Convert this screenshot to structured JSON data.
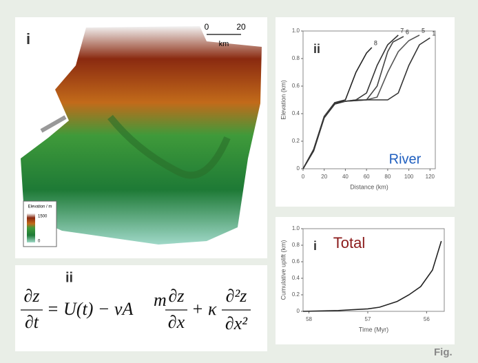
{
  "map_panel": {
    "label": "i",
    "scale_start": "0",
    "scale_end": "20",
    "scale_unit": "km",
    "legend_title": "Elevation / m",
    "legend_high": "1500",
    "legend_low": "0"
  },
  "equation_panel": {
    "label": "ii",
    "frac1_num": "∂z",
    "frac1_den": "∂t",
    "middle": "= U(t) − νA",
    "exponent": "m",
    "frac2_num": "∂z",
    "frac2_den": "∂x",
    "plus": "+ κ",
    "frac3_num": "∂²z",
    "frac3_den": "∂x²"
  },
  "footer": "Fig.",
  "chart_data": [
    {
      "type": "line",
      "panel_label": "ii",
      "annotation": "River",
      "annotation_color": "#1f5fbf",
      "x_label": "Distance (km)",
      "y_label": "Elevation (km)",
      "xlim": [
        0,
        125
      ],
      "ylim": [
        0,
        1.0
      ],
      "xticks": [
        0,
        20,
        40,
        60,
        80,
        100,
        120
      ],
      "yticks": [
        0,
        0.2,
        0.4,
        0.6,
        0.8,
        {
          "value": 1.0,
          "label": "1.0"
        }
      ],
      "series": [
        {
          "name": "8",
          "color": "#222222",
          "x": [
            0,
            10,
            20,
            30,
            40,
            50,
            60,
            65
          ],
          "values": [
            0,
            0.14,
            0.38,
            0.48,
            0.5,
            0.7,
            0.84,
            0.88
          ]
        },
        {
          "name": "7",
          "color": "#333333",
          "x": [
            0,
            10,
            20,
            30,
            40,
            50,
            60,
            70,
            80,
            90
          ],
          "values": [
            0,
            0.14,
            0.38,
            0.48,
            0.49,
            0.5,
            0.55,
            0.75,
            0.9,
            0.97
          ]
        },
        {
          "name": "6",
          "color": "#444444",
          "x": [
            0,
            10,
            20,
            30,
            40,
            50,
            60,
            70,
            80,
            85,
            95
          ],
          "values": [
            0,
            0.13,
            0.38,
            0.47,
            0.49,
            0.5,
            0.5,
            0.6,
            0.85,
            0.92,
            0.96
          ]
        },
        {
          "name": "5",
          "color": "#555555",
          "x": [
            0,
            10,
            20,
            30,
            40,
            60,
            70,
            80,
            90,
            100,
            110
          ],
          "values": [
            0,
            0.13,
            0.37,
            0.47,
            0.49,
            0.5,
            0.52,
            0.7,
            0.85,
            0.93,
            0.97
          ]
        },
        {
          "name": "1",
          "color": "#333333",
          "x": [
            0,
            10,
            20,
            30,
            40,
            60,
            80,
            90,
            100,
            110,
            120
          ],
          "values": [
            0,
            0.13,
            0.37,
            0.47,
            0.49,
            0.5,
            0.5,
            0.55,
            0.75,
            0.9,
            0.95
          ]
        }
      ]
    },
    {
      "type": "line",
      "panel_label": "i",
      "annotation": "Total",
      "annotation_color": "#8b1a1a",
      "x_label": "Time (Myr)",
      "y_label": "Cumulative uplift (km)",
      "xlim": [
        58.1,
        55.7
      ],
      "ylim": [
        0,
        1.0
      ],
      "xticks": [
        58,
        57,
        56
      ],
      "yticks": [
        0,
        0.2,
        0.4,
        0.6,
        0.8,
        {
          "value": 1.0,
          "label": "1.0"
        }
      ],
      "series": [
        {
          "name": null,
          "color": "#222222",
          "x": [
            58.1,
            57.5,
            57,
            56.8,
            56.5,
            56.3,
            56.1,
            55.9,
            55.75
          ],
          "values": [
            0,
            0.01,
            0.03,
            0.05,
            0.12,
            0.2,
            0.3,
            0.5,
            0.85
          ]
        }
      ]
    }
  ]
}
